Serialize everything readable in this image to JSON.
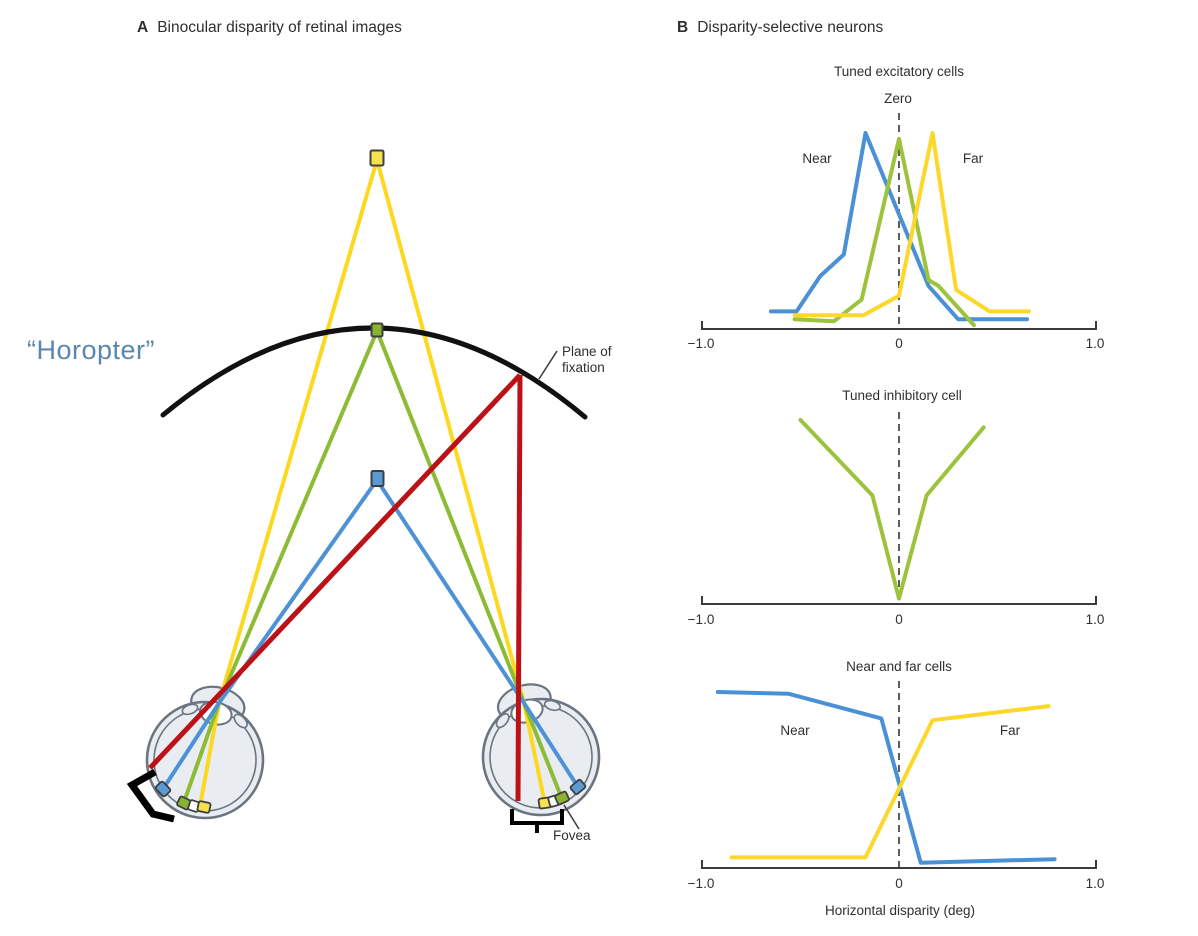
{
  "panelA": {
    "label": "A",
    "title": "Binocular disparity of retinal images",
    "horopter_annotation": "“Horopter”",
    "plane_of_fixation": {
      "line1": "Plane of",
      "line2": "fixation"
    },
    "fovea_label": "Fovea",
    "colors": {
      "horopter_text": "#5b87ae",
      "horopter_arc": "#111111",
      "near_object_blue": "#5b9bd5",
      "fixation_object_green": "#8ab332",
      "far_object_yellow": "#f6e14e",
      "ray_yellow": "#fdd820",
      "ray_green": "#8cbb35",
      "ray_blue": "#4d92d6",
      "ray_red": "#bb1117",
      "eye_fill": "#e9edf2",
      "eye_outline": "#6b7580"
    }
  },
  "panelB": {
    "label": "B",
    "title": "Disparity-selective neurons"
  },
  "chart_data": [
    {
      "type": "line",
      "title": "Tuned excitatory cells",
      "labels": {
        "zero": "Zero",
        "near": "Near",
        "far": "Far"
      },
      "xlim": [
        -1.0,
        1.0
      ],
      "ylim": [
        0,
        1
      ],
      "xticks": [
        -1.0,
        0,
        1.0
      ],
      "xtick_labels": [
        "−1.0",
        "0",
        "1.0"
      ],
      "dashed_line_at_x": 0,
      "legend_position": "inline-annotations",
      "grid": false,
      "series": [
        {
          "name": "Near",
          "color": "#4a90d5",
          "points": [
            [
              -0.65,
              0.09
            ],
            [
              -0.52,
              0.09
            ],
            [
              -0.4,
              0.27
            ],
            [
              -0.28,
              0.38
            ],
            [
              -0.17,
              1.0
            ],
            [
              0.15,
              0.22
            ],
            [
              0.3,
              0.05
            ],
            [
              0.65,
              0.05
            ]
          ]
        },
        {
          "name": "Zero",
          "color": "#9cc33b",
          "points": [
            [
              -0.53,
              0.05
            ],
            [
              -0.33,
              0.04
            ],
            [
              -0.19,
              0.15
            ],
            [
              0.0,
              0.97
            ],
            [
              0.15,
              0.25
            ],
            [
              0.2,
              0.22
            ],
            [
              0.38,
              0.02
            ]
          ]
        },
        {
          "name": "Far",
          "color": "#fdd72a",
          "points": [
            [
              -0.53,
              0.07
            ],
            [
              -0.18,
              0.07
            ],
            [
              0.0,
              0.17
            ],
            [
              0.17,
              1.0
            ],
            [
              0.29,
              0.2
            ],
            [
              0.46,
              0.09
            ],
            [
              0.66,
              0.09
            ]
          ]
        }
      ]
    },
    {
      "type": "line",
      "title": "Tuned inhibitory cell",
      "labels": {},
      "xlim": [
        -1.0,
        1.0
      ],
      "ylim": [
        0,
        1
      ],
      "xticks": [
        -1.0,
        0,
        1.0
      ],
      "xtick_labels": [
        "−1.0",
        "0",
        "1.0"
      ],
      "dashed_line_at_x": 0,
      "grid": false,
      "series": [
        {
          "name": "Tuned inhibitory",
          "color": "#9cc33b",
          "points": [
            [
              -0.5,
              1.0
            ],
            [
              -0.135,
              0.59
            ],
            [
              0.0,
              0.03
            ],
            [
              0.14,
              0.59
            ],
            [
              0.43,
              0.96
            ]
          ]
        }
      ]
    },
    {
      "type": "line",
      "title": "Near and far cells",
      "xlabel": "Horizontal disparity (deg)",
      "labels": {
        "near": "Near",
        "far": "Far"
      },
      "xlim": [
        -1.0,
        1.0
      ],
      "ylim": [
        0,
        1
      ],
      "xticks": [
        -1.0,
        0,
        1.0
      ],
      "xtick_labels": [
        "−1.0",
        "0",
        "1.0"
      ],
      "dashed_line_at_x": 0,
      "grid": false,
      "series": [
        {
          "name": "Near",
          "color": "#4a90d5",
          "points": [
            [
              -0.92,
              1.0
            ],
            [
              -0.56,
              0.99
            ],
            [
              -0.09,
              0.85
            ],
            [
              0.11,
              0.03
            ],
            [
              0.79,
              0.05
            ]
          ]
        },
        {
          "name": "Far",
          "color": "#fdd72a",
          "points": [
            [
              -0.85,
              0.06
            ],
            [
              -0.17,
              0.06
            ],
            [
              0.17,
              0.84
            ],
            [
              0.76,
              0.92
            ]
          ]
        }
      ]
    }
  ]
}
